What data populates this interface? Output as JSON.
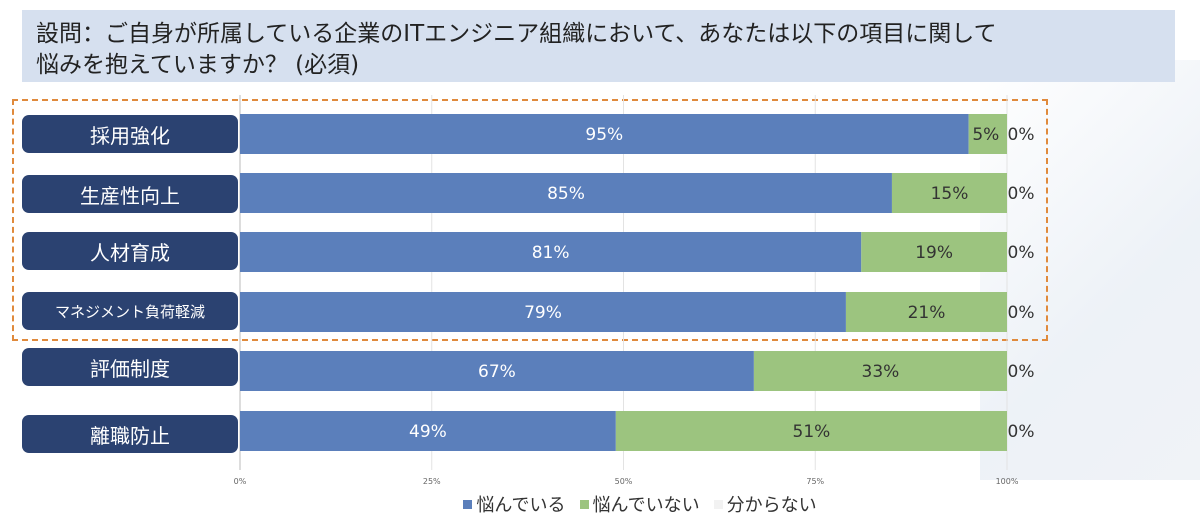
{
  "question": {
    "line1": "設問：ご自身が所属している企業のITエンジニア組織において、あなたは以下の項目に関して",
    "line2": "悩みを抱えていますか？ (必須)"
  },
  "chart_data": {
    "type": "bar",
    "orientation": "horizontal",
    "stacked": true,
    "categories": [
      "採用強化",
      "生産性向上",
      "人材育成",
      "マネジメント負荷軽減",
      "評価制度",
      "離職防止"
    ],
    "series": [
      {
        "name": "悩んでいる",
        "color": "#5b7fbb",
        "values": [
          95,
          85,
          81,
          79,
          67,
          49
        ],
        "labels": [
          "95%",
          "85%",
          "81%",
          "79%",
          "67%",
          "49%"
        ]
      },
      {
        "name": "悩んでいない",
        "color": "#9cc47f",
        "values": [
          5,
          15,
          19,
          21,
          33,
          51
        ],
        "labels": [
          "5%",
          "15%",
          "19%",
          "21%",
          "33%",
          "51%"
        ]
      },
      {
        "name": "分からない",
        "color": "#f2f2f2",
        "values": [
          0,
          0,
          0,
          0,
          0,
          0
        ],
        "labels": [
          "0%",
          "0%",
          "0%",
          "0%",
          "0%",
          "0%"
        ]
      }
    ],
    "xlim": [
      0,
      100
    ],
    "x_ticks": [
      "0%",
      "25%",
      "50%",
      "75%",
      "100%"
    ],
    "legend_position": "bottom",
    "highlighted_categories": [
      "採用強化",
      "生産性向上",
      "人材育成",
      "マネジメント負荷軽減"
    ]
  }
}
